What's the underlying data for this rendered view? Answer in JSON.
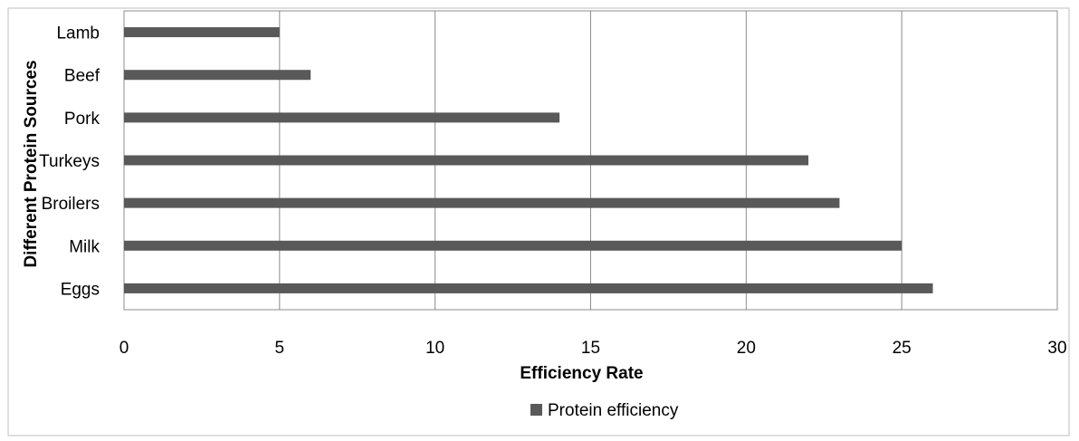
{
  "chart_data": {
    "type": "bar",
    "orientation": "horizontal",
    "categories": [
      "Lamb",
      "Beef",
      "Pork",
      "Turkeys",
      "Broilers",
      "Milk",
      "Eggs"
    ],
    "series": [
      {
        "name": "Protein efficiency",
        "values": [
          5,
          6,
          14,
          22,
          23,
          25,
          26
        ],
        "color": "#595959"
      }
    ],
    "xlabel": "Efficiency Rate",
    "ylabel": "Different Protein Sources",
    "xlim": [
      0,
      30
    ],
    "xticks": [
      "0",
      "5",
      "10",
      "15",
      "20",
      "25",
      "30"
    ],
    "grid": true,
    "legend": "bottom"
  }
}
